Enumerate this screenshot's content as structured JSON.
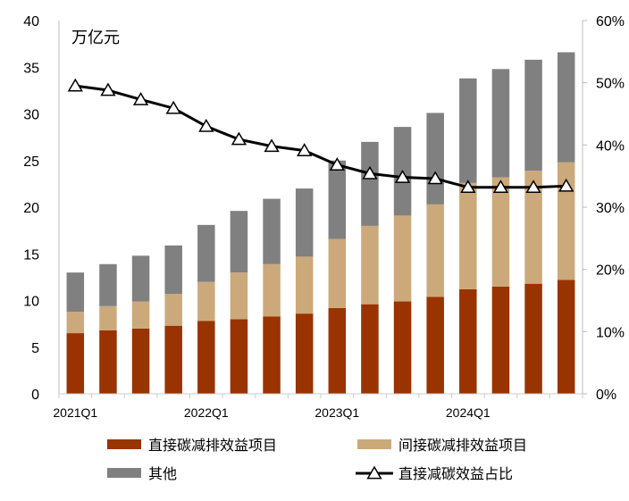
{
  "chart_data": {
    "type": "bar",
    "stacked": true,
    "unit_label": "万亿元",
    "categories": [
      "2021Q1",
      "2021Q2",
      "2021Q3",
      "2021Q4",
      "2022Q1",
      "2022Q2",
      "2022Q3",
      "2022Q4",
      "2023Q1",
      "2023Q2",
      "2023Q3",
      "2023Q4",
      "2024Q1",
      "2024Q2",
      "2024Q3",
      "2024Q4"
    ],
    "x_tick_labels": [
      "2021Q1",
      "2022Q1",
      "2023Q1",
      "2024Q1"
    ],
    "y_left": {
      "min": 0,
      "max": 40,
      "ticks": [
        0,
        5,
        10,
        15,
        20,
        25,
        30,
        35,
        40
      ]
    },
    "y_right": {
      "min": 0,
      "max": 60,
      "ticks": [
        "0%",
        "10%",
        "20%",
        "30%",
        "40%",
        "50%",
        "60%"
      ]
    },
    "grid": false,
    "legend_placement": "bottom",
    "series": [
      {
        "name": "直接碳减排效益项目",
        "kind": "bar",
        "axis": "left",
        "color": "#993300",
        "values": [
          6.5,
          6.8,
          7.0,
          7.3,
          7.8,
          8.0,
          8.3,
          8.6,
          9.2,
          9.6,
          9.9,
          10.4,
          11.2,
          11.5,
          11.8,
          12.2
        ]
      },
      {
        "name": "间接碳减排效益项目",
        "kind": "bar",
        "axis": "left",
        "color": "#CCA97A",
        "values": [
          2.3,
          2.6,
          2.9,
          3.4,
          4.2,
          5.0,
          5.6,
          6.1,
          7.4,
          8.4,
          9.2,
          9.9,
          11.4,
          11.7,
          12.1,
          12.6
        ]
      },
      {
        "name": "其他",
        "kind": "bar",
        "axis": "left",
        "color": "#808080",
        "values": [
          4.2,
          4.5,
          4.9,
          5.2,
          6.1,
          6.6,
          7.0,
          7.3,
          8.4,
          9.0,
          9.5,
          9.8,
          11.2,
          11.6,
          11.9,
          11.8
        ]
      },
      {
        "name": "直接减碳效益占比",
        "kind": "line",
        "axis": "right",
        "unit": "%",
        "color": "#000000",
        "values": [
          49.5,
          48.8,
          47.3,
          45.9,
          43.0,
          40.9,
          39.8,
          39.1,
          36.8,
          35.4,
          34.8,
          34.6,
          33.2,
          33.2,
          33.2,
          33.4
        ]
      }
    ]
  }
}
